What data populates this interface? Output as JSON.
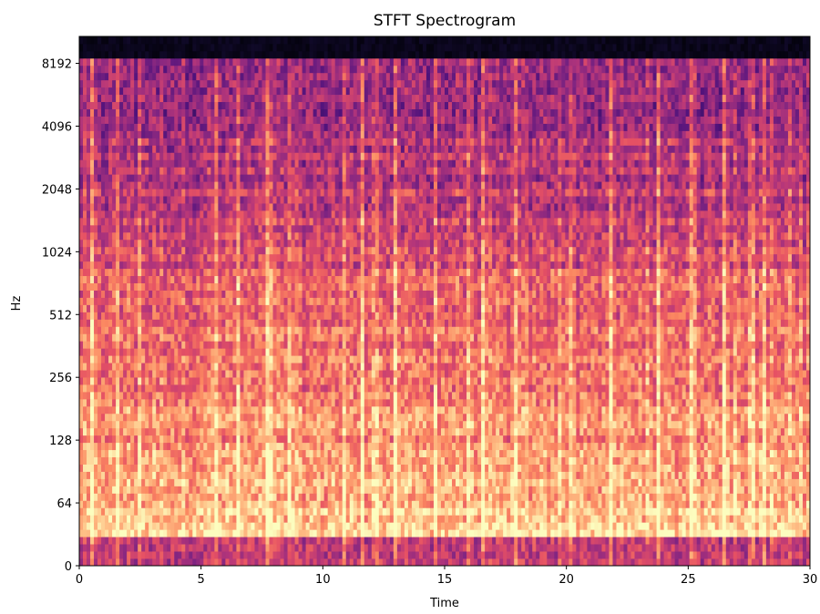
{
  "chart_data": {
    "type": "spectrogram",
    "title": "STFT Spectrogram",
    "x_label": "Time",
    "y_label": "Hz",
    "xlim": [
      0,
      30
    ],
    "xticks": [
      0,
      5,
      10,
      15,
      20,
      25,
      30
    ],
    "ylim": [
      0,
      11025
    ],
    "yticks": [
      0,
      64,
      128,
      256,
      512,
      1024,
      2048,
      4096,
      8192
    ],
    "yscale": "symlog",
    "linthresh": 64,
    "colormap": "magma"
  }
}
